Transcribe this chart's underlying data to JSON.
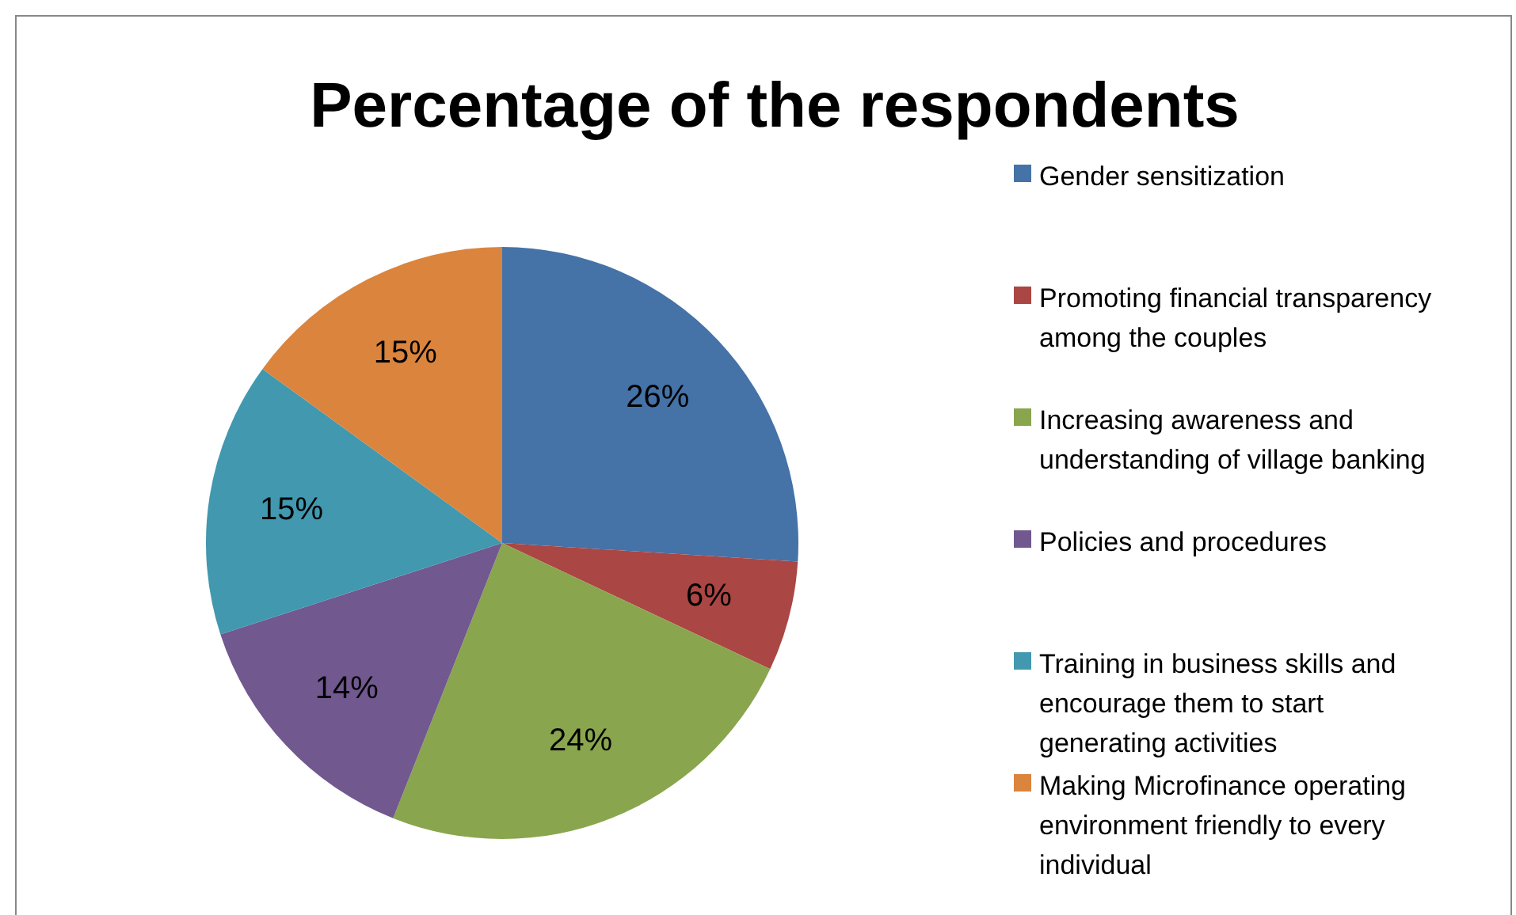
{
  "chart_data": {
    "type": "pie",
    "title": "Percentage of the respondents",
    "categories": [
      "Gender sensitization",
      "Promoting financial transparency among the couples",
      "Increasing awareness and understanding of village banking",
      "Policies and procedures",
      "Training in business skills and encourage them to start generating activities",
      "Making Microfinance operating environment friendly to every individual"
    ],
    "values": [
      26,
      6,
      24,
      14,
      15,
      15
    ],
    "colors": [
      "#4572a7",
      "#aa4643",
      "#89a54e",
      "#71588f",
      "#4198af",
      "#db843d"
    ],
    "value_labels": [
      "26%",
      "6%",
      "24%",
      "14%",
      "15%",
      "15%"
    ],
    "legend": "right"
  }
}
